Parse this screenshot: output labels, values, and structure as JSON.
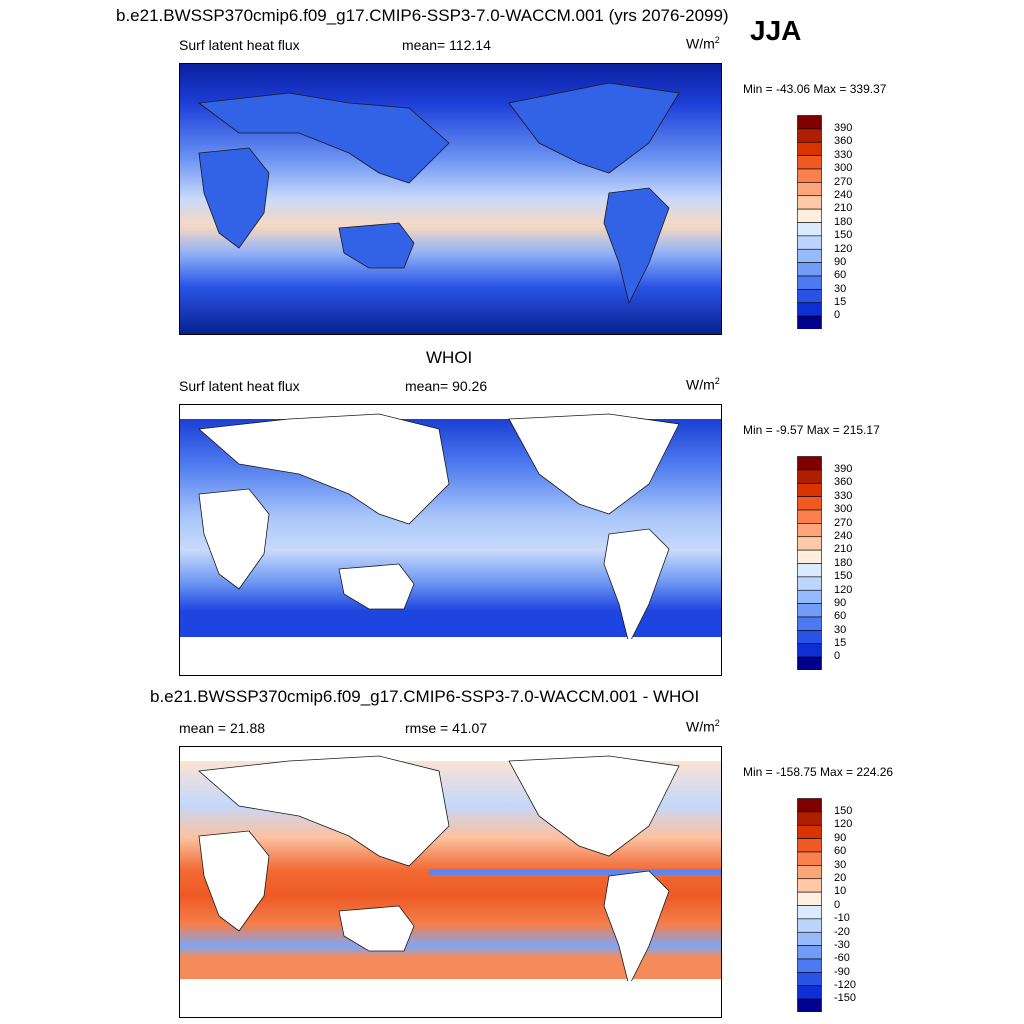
{
  "figure": {
    "main_title": "b.e21.BWSSP370cmip6.f09_g17.CMIP6-SSP3-7.0-WACCM.001 (yrs 2076-2099)",
    "season": "JJA"
  },
  "panels": [
    {
      "title": "",
      "left_label": "Surf latent heat flux",
      "center_label": "mean= 112.14",
      "units_base": "W/m",
      "units_exp": "2",
      "minmax": "Min = -43.06 Max = 339.37",
      "colorbar": {
        "labels": [
          "390",
          "360",
          "330",
          "300",
          "270",
          "240",
          "210",
          "180",
          "150",
          "120",
          "90",
          "60",
          "30",
          "15",
          "0"
        ],
        "colors": [
          "#800000",
          "#b01e00",
          "#d93300",
          "#f05a22",
          "#fa8050",
          "#fca47a",
          "#fdc9a6",
          "#fdeedd",
          "#dbeafd",
          "#bcd5fc",
          "#97bafb",
          "#729cf6",
          "#4c79f0",
          "#2a53e6",
          "#0d2fd5",
          "#00008c"
        ]
      }
    },
    {
      "title": "WHOI",
      "left_label": "Surf latent heat flux",
      "center_label": "mean=  90.26",
      "units_base": "W/m",
      "units_exp": "2",
      "minmax": "Min =  -9.57 Max = 215.17",
      "colorbar": {
        "labels": [
          "390",
          "360",
          "330",
          "300",
          "270",
          "240",
          "210",
          "180",
          "150",
          "120",
          "90",
          "60",
          "30",
          "15",
          "0"
        ],
        "colors": [
          "#800000",
          "#b01e00",
          "#d93300",
          "#f05a22",
          "#fa8050",
          "#fca47a",
          "#fdc9a6",
          "#fdeedd",
          "#dbeafd",
          "#bcd5fc",
          "#97bafb",
          "#729cf6",
          "#4c79f0",
          "#2a53e6",
          "#0d2fd5",
          "#00008c"
        ]
      }
    },
    {
      "title": "b.e21.BWSSP370cmip6.f09_g17.CMIP6-SSP3-7.0-WACCM.001 - WHOI",
      "left_label": "mean =  21.88",
      "center_label": "rmse =  41.07",
      "units_base": "W/m",
      "units_exp": "2",
      "minmax": "Min = -158.75 Max = 224.26",
      "colorbar": {
        "labels": [
          "150",
          "120",
          "90",
          "60",
          "30",
          "20",
          "10",
          "0",
          "-10",
          "-20",
          "-30",
          "-60",
          "-90",
          "-120",
          "-150"
        ],
        "colors": [
          "#800000",
          "#b01e00",
          "#d93300",
          "#f05a22",
          "#fa8050",
          "#fca47a",
          "#fdc9a6",
          "#fdeedd",
          "#dbeafd",
          "#bcd5fc",
          "#97bafb",
          "#729cf6",
          "#4c79f0",
          "#2a53e6",
          "#0d2fd5",
          "#00008c"
        ]
      }
    }
  ]
}
